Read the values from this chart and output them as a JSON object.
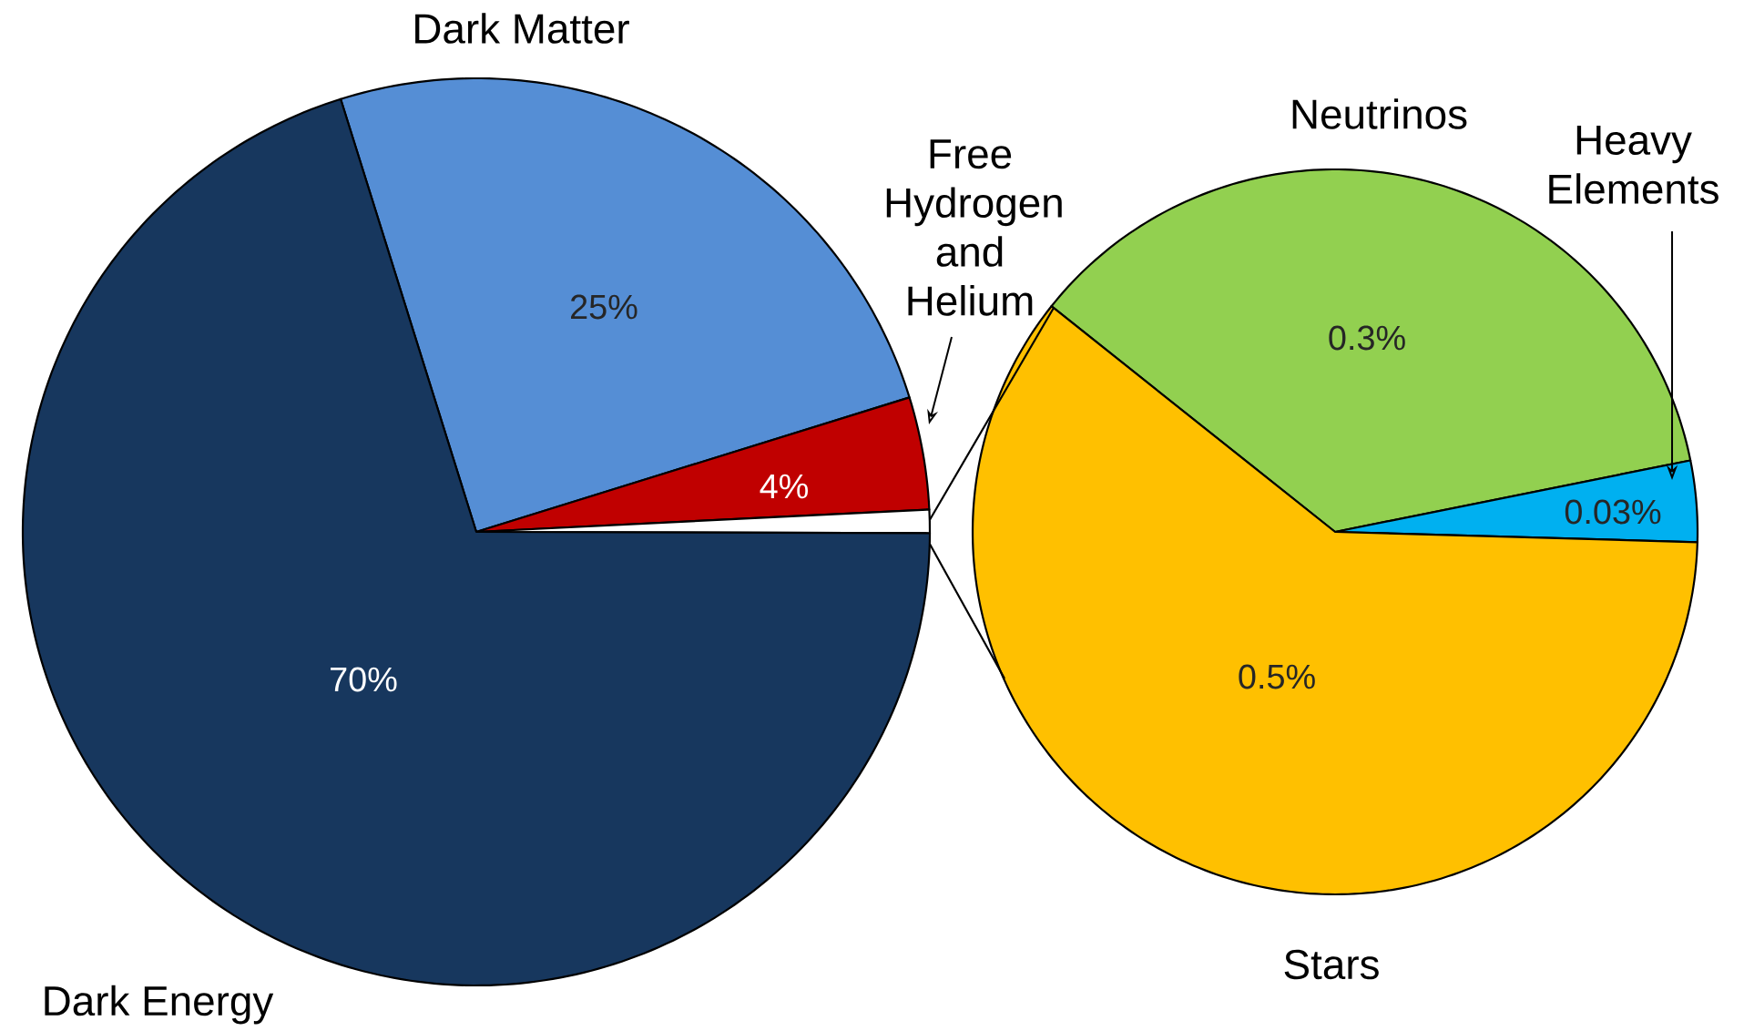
{
  "chart_data": [
    {
      "type": "pie",
      "categories": [
        "Dark Matter",
        "Free Hydrogen and Helium",
        null,
        "Dark Energy"
      ],
      "values": [
        25,
        4,
        0.83,
        70
      ],
      "colors": [
        "#558ed5",
        "#c00000",
        "#ffffff",
        "#17375e"
      ],
      "value_labels": [
        "25%",
        "4%",
        null,
        "70%"
      ]
    },
    {
      "type": "pie",
      "categories": [
        "Neutrinos",
        "Heavy Elements",
        "Stars"
      ],
      "values": [
        0.3,
        0.03,
        0.5
      ],
      "colors": [
        "#92d050",
        "#00b0f0",
        "#ffc000"
      ],
      "value_labels": [
        "0.3%",
        "0.03%",
        "0.5%"
      ]
    }
  ]
}
